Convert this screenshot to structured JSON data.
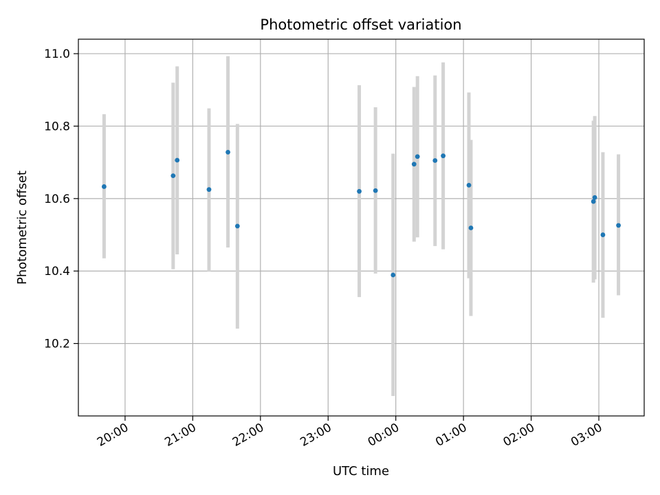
{
  "chart_data": {
    "type": "scatter",
    "title": "Photometric offset variation",
    "xlabel": "UTC time",
    "ylabel": "Photometric offset",
    "x_tick_labels": [
      "20:00",
      "21:00",
      "22:00",
      "23:00",
      "00:00",
      "01:00",
      "02:00",
      "03:00"
    ],
    "x_ticks_hours": [
      20,
      21,
      22,
      23,
      24,
      25,
      26,
      27
    ],
    "xlim_hours": [
      19.31,
      27.67
    ],
    "y_ticks": [
      10.2,
      10.4,
      10.6,
      10.8,
      11.0
    ],
    "y_tick_labels": [
      "10.2",
      "10.4",
      "10.6",
      "10.8",
      "11.0"
    ],
    "ylim": [
      10.0,
      11.04
    ],
    "grid": true,
    "point_color": "#1f77b4",
    "errorbar_color": "#d3d3d3",
    "points": [
      {
        "t": 19.69,
        "y": 10.633,
        "lo": 10.435,
        "hi": 10.833
      },
      {
        "t": 20.71,
        "y": 10.663,
        "lo": 10.405,
        "hi": 10.92
      },
      {
        "t": 20.77,
        "y": 10.706,
        "lo": 10.446,
        "hi": 10.965
      },
      {
        "t": 21.24,
        "y": 10.625,
        "lo": 10.398,
        "hi": 10.849
      },
      {
        "t": 21.52,
        "y": 10.728,
        "lo": 10.465,
        "hi": 10.993
      },
      {
        "t": 21.66,
        "y": 10.524,
        "lo": 10.241,
        "hi": 10.806
      },
      {
        "t": 23.46,
        "y": 10.62,
        "lo": 10.328,
        "hi": 10.913
      },
      {
        "t": 23.7,
        "y": 10.622,
        "lo": 10.393,
        "hi": 10.852
      },
      {
        "t": 23.96,
        "y": 10.389,
        "lo": 10.055,
        "hi": 10.724
      },
      {
        "t": 24.27,
        "y": 10.695,
        "lo": 10.481,
        "hi": 10.908
      },
      {
        "t": 24.32,
        "y": 10.716,
        "lo": 10.493,
        "hi": 10.938
      },
      {
        "t": 24.58,
        "y": 10.705,
        "lo": 10.469,
        "hi": 10.94
      },
      {
        "t": 24.7,
        "y": 10.718,
        "lo": 10.46,
        "hi": 10.976
      },
      {
        "t": 25.08,
        "y": 10.637,
        "lo": 10.38,
        "hi": 10.893
      },
      {
        "t": 25.11,
        "y": 10.519,
        "lo": 10.276,
        "hi": 10.762
      },
      {
        "t": 26.92,
        "y": 10.592,
        "lo": 10.368,
        "hi": 10.815
      },
      {
        "t": 26.94,
        "y": 10.603,
        "lo": 10.377,
        "hi": 10.828
      },
      {
        "t": 27.06,
        "y": 10.5,
        "lo": 10.271,
        "hi": 10.728
      },
      {
        "t": 27.29,
        "y": 10.526,
        "lo": 10.333,
        "hi": 10.722
      }
    ]
  }
}
